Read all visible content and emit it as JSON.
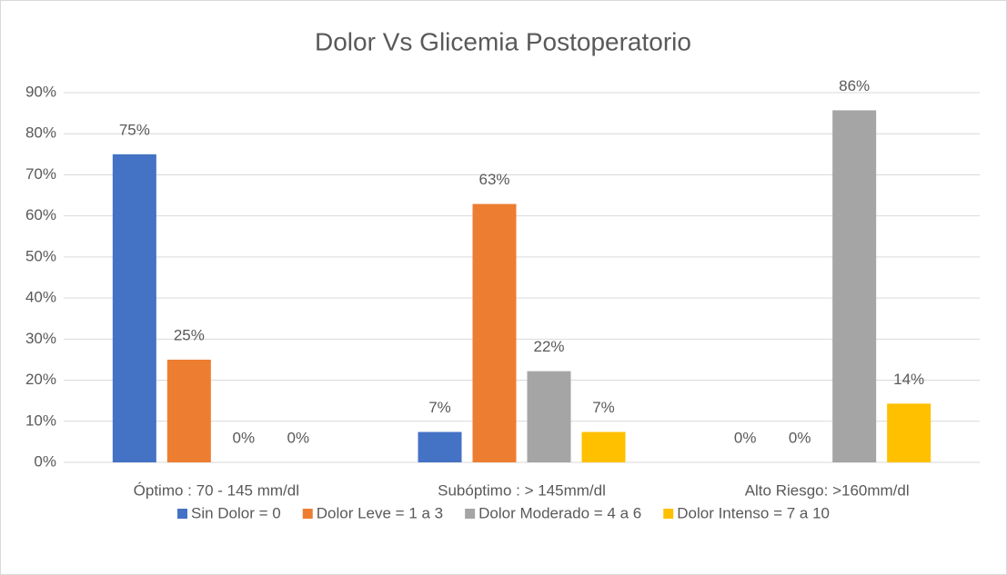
{
  "chart_data": {
    "type": "bar",
    "title": "Dolor Vs Glicemia Postoperatorio",
    "categories": [
      "Óptimo : 70 - 145 mm/dl",
      "Subóptimo : > 145mm/dl",
      "Alto Riesgo: >160mm/dl"
    ],
    "series": [
      {
        "name": "Sin Dolor = 0",
        "color": "#4472c4",
        "values": [
          75,
          7.4,
          0
        ],
        "value_labels": [
          "75%",
          "7%",
          "0%"
        ]
      },
      {
        "name": "Dolor Leve = 1 a 3",
        "color": "#ed7d31",
        "values": [
          25,
          62.9,
          0
        ],
        "value_labels": [
          "25%",
          "63%",
          "0%"
        ]
      },
      {
        "name": "Dolor Moderado =  4 a 6",
        "color": "#a5a5a5",
        "values": [
          0,
          22.2,
          85.7
        ],
        "value_labels": [
          "0%",
          "22%",
          "86%"
        ]
      },
      {
        "name": "Dolor Intenso = 7 a 10",
        "color": "#ffc000",
        "values": [
          0,
          7.4,
          14.3
        ],
        "value_labels": [
          "0%",
          "7%",
          "14%"
        ]
      }
    ],
    "ylim": [
      0,
      90
    ],
    "yticks": [
      {
        "value": 0,
        "label": "0%"
      },
      {
        "value": 10,
        "label": "10%"
      },
      {
        "value": 20,
        "label": "20%"
      },
      {
        "value": 30,
        "label": "30%"
      },
      {
        "value": 40,
        "label": "40%"
      },
      {
        "value": 50,
        "label": "50%"
      },
      {
        "value": 60,
        "label": "60%"
      },
      {
        "value": 70,
        "label": "70%"
      },
      {
        "value": 80,
        "label": "80%"
      },
      {
        "value": 90,
        "label": "90%"
      }
    ],
    "grid": true,
    "legend": "bottom"
  }
}
